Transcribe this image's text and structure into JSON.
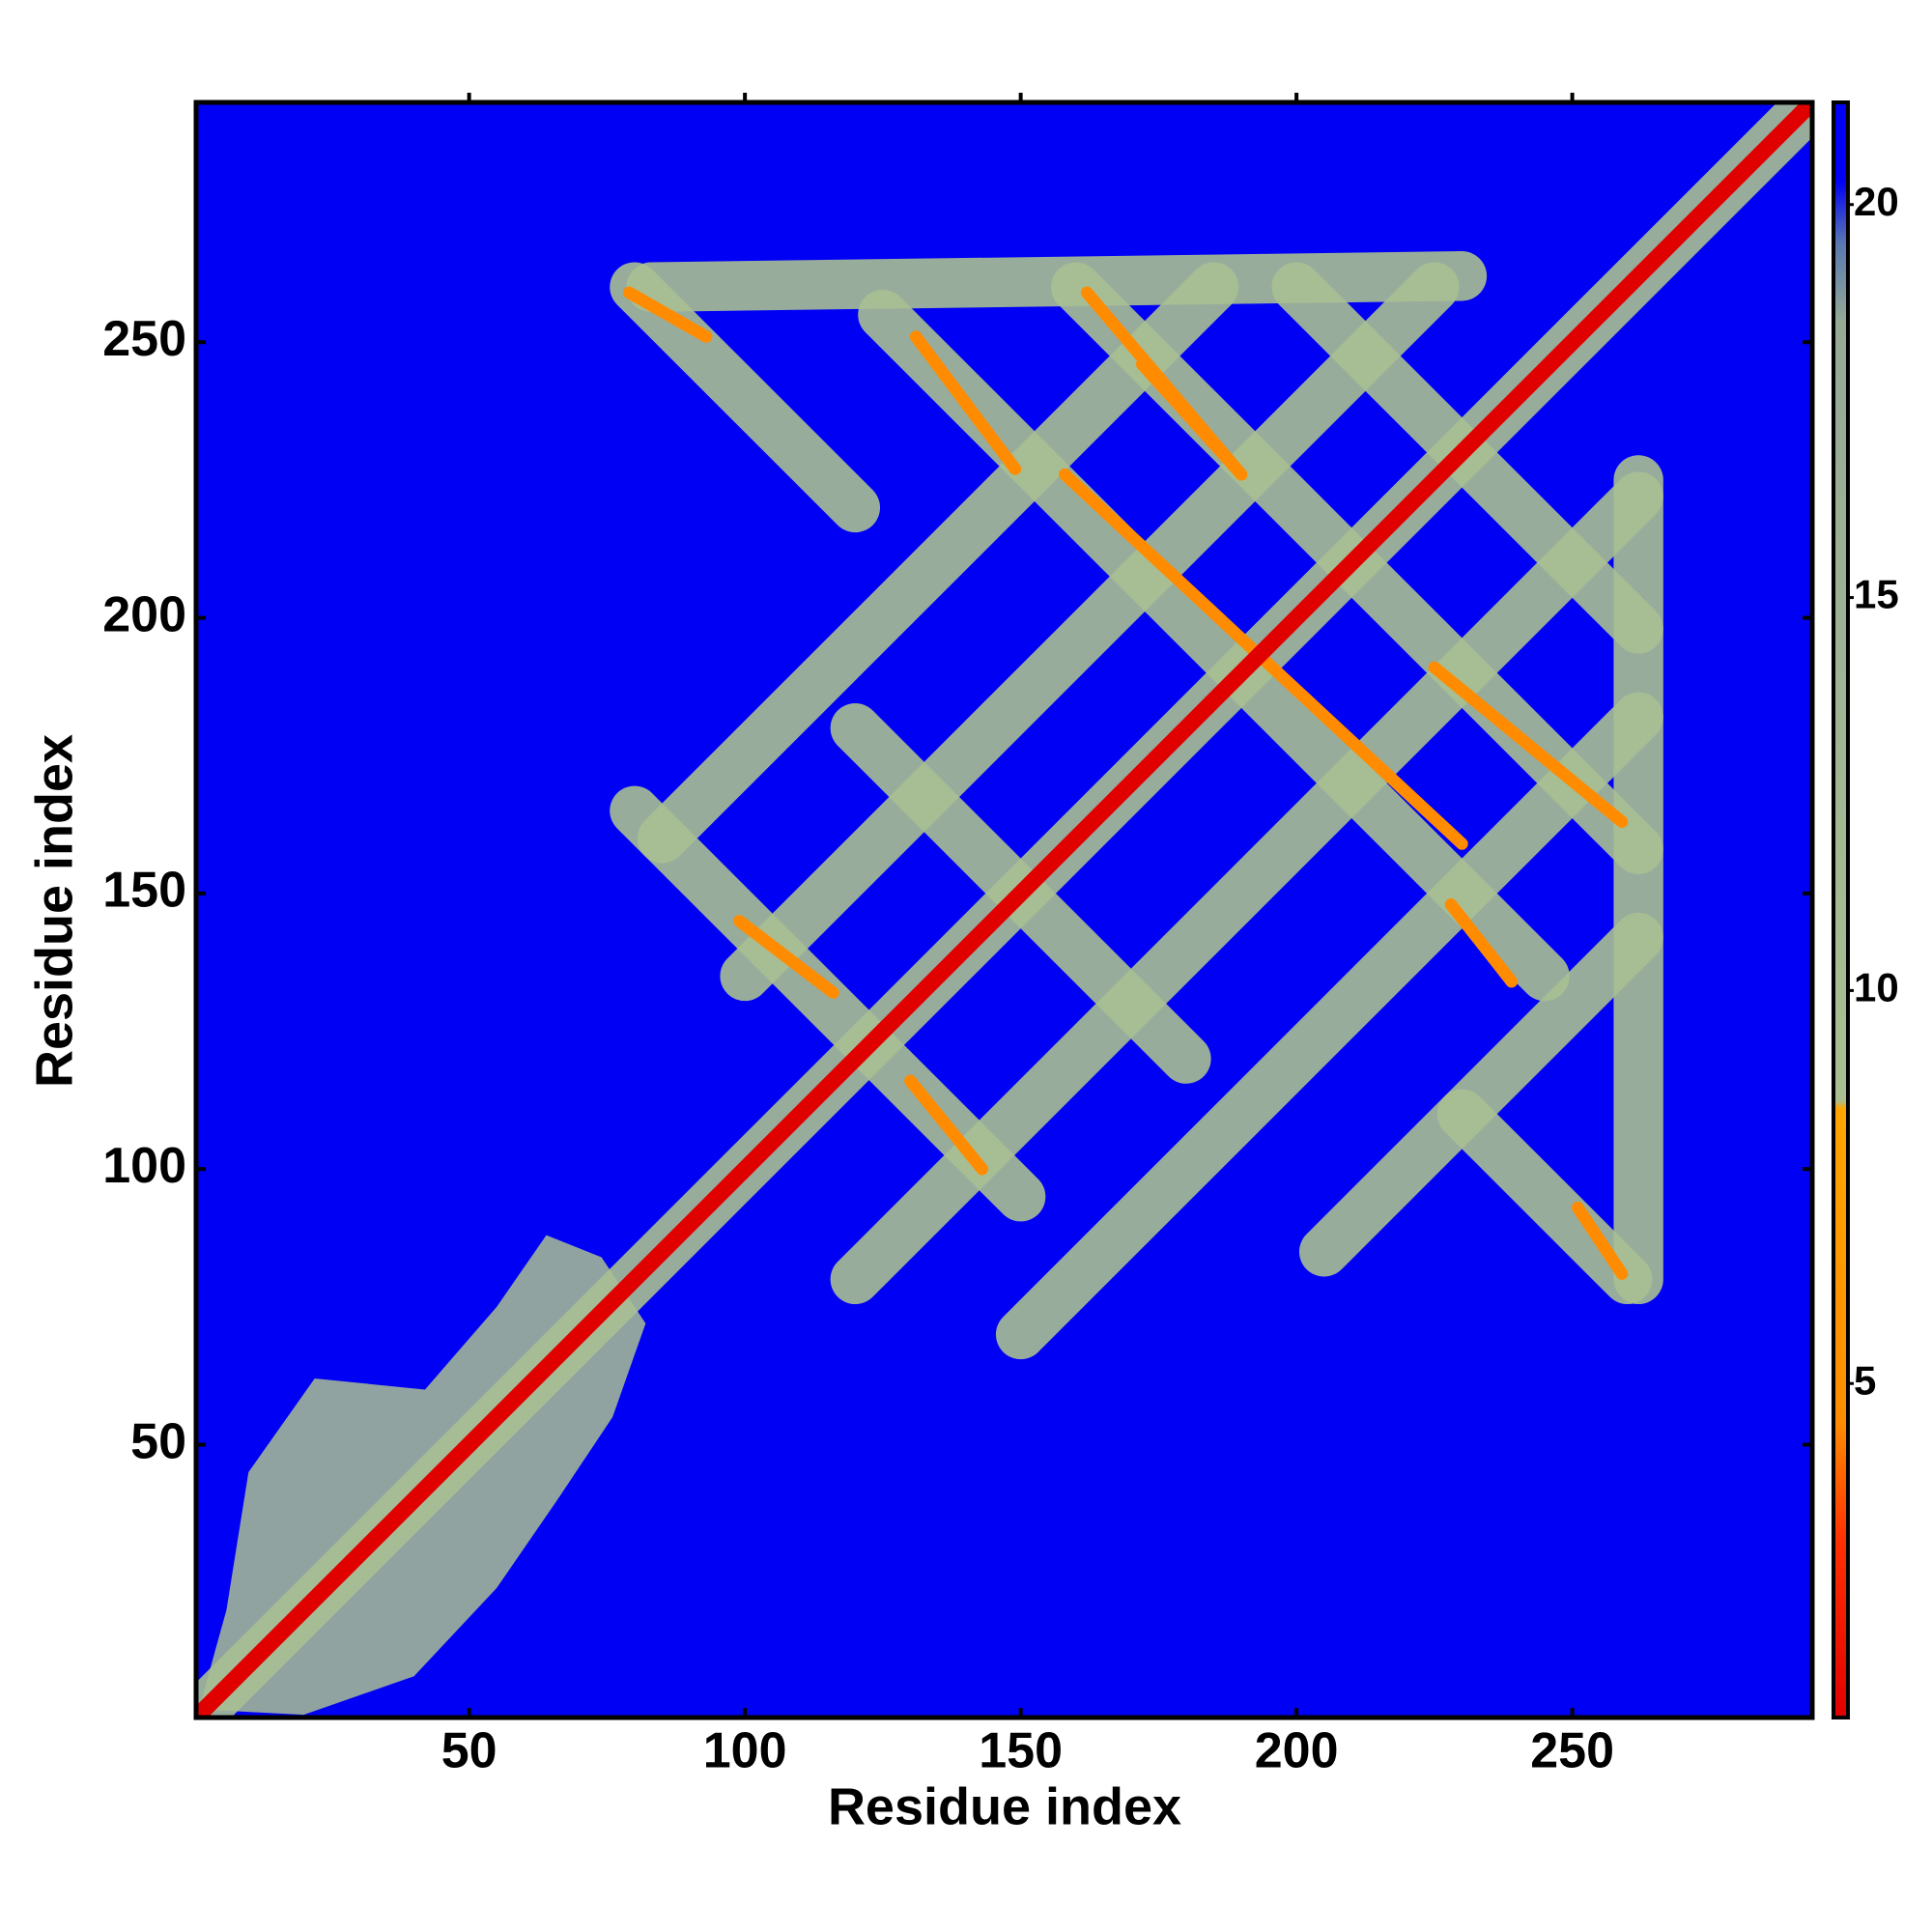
{
  "chart_data": {
    "type": "contact-map",
    "xlabel": "Residue index",
    "ylabel": "Residue index",
    "xlim": [
      0.5,
      293.5
    ],
    "ylim": [
      0.5,
      293.5
    ],
    "xticks": [
      50,
      100,
      150,
      200,
      250
    ],
    "yticks": [
      50,
      100,
      150,
      200,
      250
    ],
    "clim": [
      0.75,
      21.3
    ],
    "cticks": [
      5,
      10,
      15,
      20
    ],
    "colorscale": [
      [
        0.75,
        "#e00000"
      ],
      [
        3,
        "#ff3000"
      ],
      [
        4.5,
        "#ff8c00"
      ],
      [
        8.5,
        "#ffa500"
      ],
      [
        8.6,
        "#a9bf92"
      ],
      [
        18.5,
        "#95aa95"
      ],
      [
        19.5,
        "#5a78b0"
      ],
      [
        20.3,
        "#0000f5"
      ],
      [
        21.3,
        "#0000f5"
      ]
    ],
    "features": [
      {
        "kind": "region",
        "value": 12,
        "points": [
          [
            1,
            2
          ],
          [
            6,
            20
          ],
          [
            10,
            45
          ],
          [
            22,
            62
          ],
          [
            42,
            60
          ],
          [
            55,
            75
          ],
          [
            64,
            88
          ],
          [
            74,
            84
          ],
          [
            82,
            72
          ],
          [
            76,
            55
          ],
          [
            66,
            40
          ],
          [
            55,
            24
          ],
          [
            40,
            8
          ],
          [
            20,
            1
          ]
        ]
      },
      {
        "kind": "line",
        "value": 12,
        "points": [
          [
            1,
            1
          ],
          [
            293,
            293
          ]
        ]
      },
      {
        "kind": "line",
        "value": 12,
        "points": [
          [
            80,
            165
          ],
          [
            150,
            95
          ]
        ]
      },
      {
        "kind": "line",
        "value": 12,
        "points": [
          [
            120,
            180
          ],
          [
            180,
            120
          ]
        ]
      },
      {
        "kind": "line",
        "value": 12,
        "points": [
          [
            80,
            260
          ],
          [
            120,
            220
          ]
        ]
      },
      {
        "kind": "line",
        "value": 12,
        "points": [
          [
            230,
            110
          ],
          [
            260,
            80
          ]
        ]
      },
      {
        "kind": "line",
        "value": 12,
        "points": [
          [
            125,
            255
          ],
          [
            245,
            135
          ]
        ]
      },
      {
        "kind": "line",
        "value": 12,
        "points": [
          [
            160,
            260
          ],
          [
            262,
            158
          ]
        ]
      },
      {
        "kind": "line",
        "value": 12,
        "points": [
          [
            200,
            260
          ],
          [
            262,
            198
          ]
        ]
      },
      {
        "kind": "line",
        "value": 12,
        "points": [
          [
            100,
            135
          ],
          [
            225,
            260
          ]
        ]
      },
      {
        "kind": "line",
        "value": 12,
        "points": [
          [
            85,
            160
          ],
          [
            185,
            260
          ]
        ]
      },
      {
        "kind": "line",
        "value": 12,
        "points": [
          [
            120,
            80
          ],
          [
            262,
            222
          ]
        ]
      },
      {
        "kind": "line",
        "value": 12,
        "points": [
          [
            150,
            70
          ],
          [
            262,
            182
          ]
        ]
      },
      {
        "kind": "line",
        "value": 12,
        "points": [
          [
            205,
            85
          ],
          [
            262,
            142
          ]
        ]
      },
      {
        "kind": "line",
        "value": 12,
        "points": [
          [
            262,
            80
          ],
          [
            262,
            225
          ]
        ]
      },
      {
        "kind": "line",
        "value": 12,
        "points": [
          [
            83,
            260
          ],
          [
            230,
            262
          ]
        ]
      },
      {
        "kind": "line",
        "value": 6,
        "points": [
          [
            99,
            145
          ],
          [
            116,
            132
          ]
        ]
      },
      {
        "kind": "line",
        "value": 6,
        "points": [
          [
            130,
            116
          ],
          [
            143,
            100
          ]
        ]
      },
      {
        "kind": "line",
        "value": 6,
        "points": [
          [
            131,
            251
          ],
          [
            149,
            227
          ]
        ]
      },
      {
        "kind": "line",
        "value": 6,
        "points": [
          [
            162,
            259
          ],
          [
            190,
            226
          ]
        ]
      },
      {
        "kind": "line",
        "value": 6,
        "points": [
          [
            158,
            226
          ],
          [
            230,
            159
          ]
        ]
      },
      {
        "kind": "line",
        "value": 6,
        "points": [
          [
            172,
            246
          ],
          [
            190,
            226
          ]
        ]
      },
      {
        "kind": "line",
        "value": 6,
        "points": [
          [
            225,
            191
          ],
          [
            259,
            163
          ]
        ]
      },
      {
        "kind": "line",
        "value": 6,
        "points": [
          [
            228,
            148
          ],
          [
            239,
            134
          ]
        ]
      },
      {
        "kind": "line",
        "value": 6,
        "points": [
          [
            251,
            93
          ],
          [
            259,
            81
          ]
        ]
      },
      {
        "kind": "line",
        "value": 6,
        "points": [
          [
            79,
            259
          ],
          [
            93,
            251
          ]
        ]
      },
      {
        "kind": "line",
        "value": 2,
        "points": [
          [
            1,
            1
          ],
          [
            293,
            293
          ]
        ]
      }
    ]
  }
}
